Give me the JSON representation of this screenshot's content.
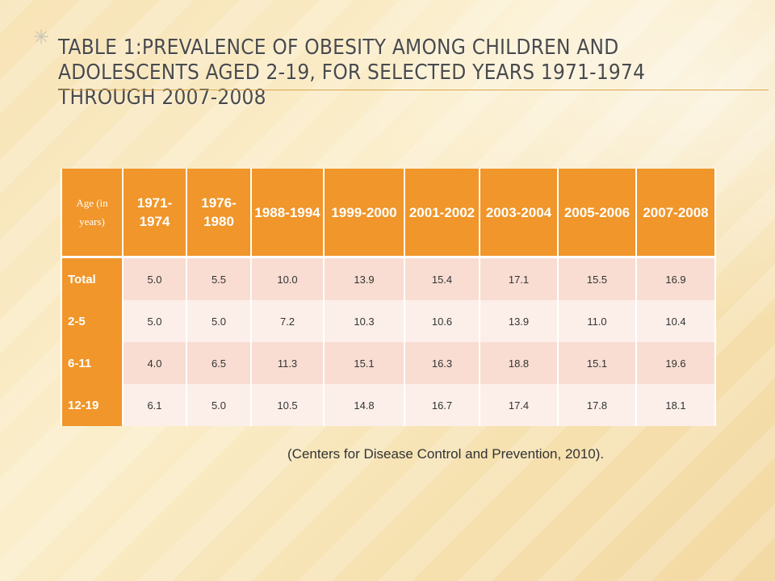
{
  "title": "Table 1:Prevalence of obesity among children and adolescents aged 2-19, for selected years 1971-1974 through 2007-2008",
  "bullet_icon": "star-bullet-icon",
  "table": {
    "corner_header": "Age (in years)",
    "columns": [
      "1971-1974",
      "1976-1980",
      "1988-1994",
      "1999-2000",
      "2001-2002",
      "2003-2004",
      "2005-2006",
      "2007-2008"
    ],
    "rows": [
      {
        "label": "Total",
        "values": [
          "5.0",
          "5.5",
          "10.0",
          "13.9",
          "15.4",
          "17.1",
          "15.5",
          "16.9"
        ]
      },
      {
        "label": "2-5",
        "values": [
          "5.0",
          "5.0",
          "7.2",
          "10.3",
          "10.6",
          "13.9",
          "11.0",
          "10.4"
        ]
      },
      {
        "label": "6-11",
        "values": [
          "4.0",
          "6.5",
          "11.3",
          "15.1",
          "16.3",
          "18.8",
          "15.1",
          "19.6"
        ]
      },
      {
        "label": "12-19",
        "values": [
          "6.1",
          "5.0",
          "10.5",
          "14.8",
          "16.7",
          "17.4",
          "17.8",
          "18.1"
        ]
      }
    ]
  },
  "caption": "(Centers for Disease Control and Prevention, 2010).",
  "colors": {
    "header_orange": "#f0962a",
    "row_light_pink": "#f9ddd2",
    "row_lighter_pink": "#fcefea"
  }
}
